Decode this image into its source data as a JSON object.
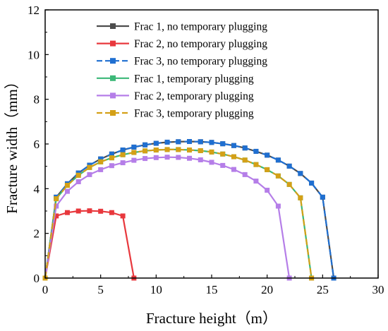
{
  "chart_data": {
    "type": "line",
    "title": "",
    "xlabel": "Fracture height（m）",
    "ylabel": "Fracture width（mm）",
    "xlim": [
      0,
      30
    ],
    "ylim": [
      0,
      12
    ],
    "xticks": [
      "0",
      "5",
      "10",
      "15",
      "20",
      "25",
      "30"
    ],
    "yticks": [
      "0",
      "2",
      "4",
      "6",
      "8",
      "10",
      "12"
    ],
    "grid": false,
    "legend_position": "top-right",
    "series": [
      {
        "name": "Frac 1, no temporary plugging",
        "color": "#4d4d4d",
        "dash": "solid",
        "marker": "square",
        "x": [
          0,
          1,
          2,
          3,
          4,
          5,
          6,
          7,
          8,
          9,
          10,
          11,
          12,
          13,
          14,
          15,
          16,
          17,
          18,
          19,
          20,
          21,
          22,
          23,
          24,
          25,
          26
        ],
        "y": [
          0,
          3.62,
          4.22,
          4.7,
          5.05,
          5.33,
          5.55,
          5.73,
          5.86,
          5.96,
          6.03,
          6.08,
          6.1,
          6.11,
          6.1,
          6.07,
          6.01,
          5.93,
          5.82,
          5.67,
          5.5,
          5.28,
          5.01,
          4.68,
          4.25,
          3.62,
          0
        ]
      },
      {
        "name": "Frac 2, no temporary plugging",
        "color": "#e8383d",
        "dash": "solid",
        "marker": "square",
        "x": [
          0,
          1,
          2,
          3,
          4,
          5,
          6,
          7,
          8
        ],
        "y": [
          0,
          2.78,
          2.93,
          3.0,
          3.01,
          2.99,
          2.93,
          2.78,
          0
        ]
      },
      {
        "name": "Frac 3, no temporary plugging",
        "color": "#1f6fd1",
        "dash": "dashed",
        "marker": "square",
        "x": [
          0,
          1,
          2,
          3,
          4,
          5,
          6,
          7,
          8,
          9,
          10,
          11,
          12,
          13,
          14,
          15,
          16,
          17,
          18,
          19,
          20,
          21,
          22,
          23,
          24,
          25,
          26
        ],
        "y": [
          0,
          3.62,
          4.22,
          4.7,
          5.05,
          5.33,
          5.55,
          5.73,
          5.86,
          5.96,
          6.03,
          6.08,
          6.1,
          6.11,
          6.1,
          6.07,
          6.01,
          5.93,
          5.82,
          5.67,
          5.5,
          5.28,
          5.01,
          4.68,
          4.25,
          3.62,
          0
        ]
      },
      {
        "name": "Frac 1, temporary plugging",
        "color": "#3cb878",
        "dash": "solid",
        "marker": "square",
        "x": [
          0,
          1,
          2,
          3,
          4,
          5,
          6,
          7,
          8,
          9,
          10,
          11,
          12,
          13,
          14,
          15,
          16,
          17,
          18,
          19,
          20,
          21,
          22,
          23,
          24
        ],
        "y": [
          0,
          3.55,
          4.15,
          4.6,
          4.95,
          5.2,
          5.38,
          5.52,
          5.62,
          5.69,
          5.73,
          5.75,
          5.75,
          5.73,
          5.7,
          5.64,
          5.55,
          5.43,
          5.28,
          5.08,
          4.85,
          4.57,
          4.19,
          3.59,
          0
        ]
      },
      {
        "name": "Frac 2, temporary plugging",
        "color": "#b57ee8",
        "dash": "solid",
        "marker": "square",
        "x": [
          0,
          1,
          2,
          3,
          4,
          5,
          6,
          7,
          8,
          9,
          10,
          11,
          12,
          13,
          14,
          15,
          16,
          17,
          18,
          19,
          20,
          21,
          22
        ],
        "y": [
          0,
          3.22,
          3.88,
          4.31,
          4.63,
          4.85,
          5.03,
          5.16,
          5.27,
          5.35,
          5.39,
          5.41,
          5.4,
          5.36,
          5.29,
          5.18,
          5.04,
          4.86,
          4.63,
          4.34,
          3.93,
          3.22,
          0
        ]
      },
      {
        "name": "Frac 3, temporary plugging",
        "color": "#d4a017",
        "dash": "dashed",
        "marker": "square",
        "x": [
          0,
          1,
          2,
          3,
          4,
          5,
          6,
          7,
          8,
          9,
          10,
          11,
          12,
          13,
          14,
          15,
          16,
          17,
          18,
          19,
          20,
          21,
          22,
          23,
          24
        ],
        "y": [
          0,
          3.55,
          4.15,
          4.6,
          4.95,
          5.2,
          5.38,
          5.52,
          5.62,
          5.69,
          5.73,
          5.75,
          5.75,
          5.73,
          5.7,
          5.64,
          5.55,
          5.43,
          5.28,
          5.08,
          4.85,
          4.57,
          4.19,
          3.59,
          0
        ]
      }
    ]
  }
}
